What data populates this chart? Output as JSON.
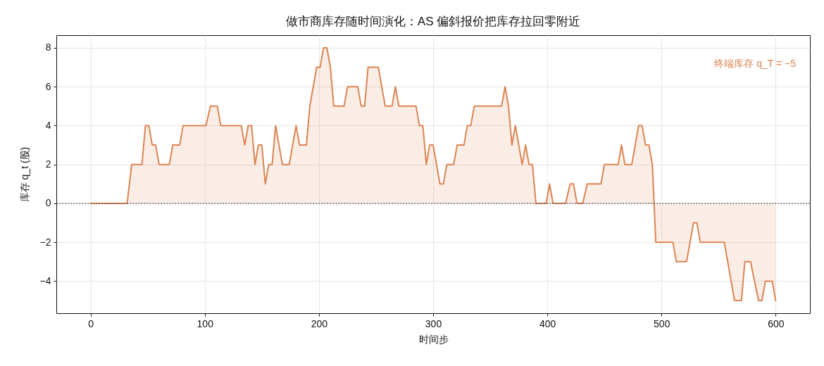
{
  "chart_data": {
    "type": "area",
    "title": "做市商库存随时间演化：AS 偏斜报价把库存拉回零附近",
    "xlabel": "时间步",
    "ylabel": "库存 q_t (股)",
    "x": [
      0,
      32,
      36,
      45,
      48,
      51,
      54,
      57,
      60,
      69,
      72,
      78,
      81,
      101,
      105,
      111,
      114,
      132,
      135,
      138,
      141,
      144,
      147,
      150,
      153,
      156,
      159,
      162,
      168,
      174,
      180,
      183,
      189,
      192,
      195,
      198,
      201,
      204,
      207,
      210,
      213,
      222,
      225,
      234,
      237,
      240,
      243,
      252,
      258,
      264,
      267,
      270,
      285,
      288,
      291,
      294,
      297,
      300,
      306,
      309,
      312,
      318,
      321,
      327,
      330,
      333,
      336,
      360,
      363,
      366,
      369,
      372,
      378,
      381,
      384,
      387,
      390,
      399,
      402,
      405,
      416,
      420,
      423,
      426,
      431,
      435,
      447,
      450,
      462,
      465,
      468,
      474,
      480,
      483,
      486,
      489,
      492,
      495,
      510,
      513,
      522,
      528,
      531,
      534,
      555,
      564,
      570,
      573,
      578,
      585,
      588,
      591,
      597,
      600
    ],
    "series": [
      {
        "color": "#dd8452",
        "values": [
          0,
          0,
          2,
          2,
          4,
          4,
          3,
          3,
          2,
          2,
          3,
          3,
          4,
          4,
          5,
          5,
          4,
          4,
          3,
          4,
          4,
          2,
          3,
          3,
          1,
          2,
          2,
          4,
          2,
          2,
          4,
          3,
          3,
          5,
          6,
          7,
          7,
          8,
          8,
          7,
          5,
          5,
          6,
          6,
          5,
          5,
          7,
          7,
          5,
          5,
          6,
          5,
          5,
          4,
          4,
          2,
          3,
          3,
          1,
          1,
          2,
          2,
          3,
          3,
          4,
          4,
          5,
          5,
          6,
          5,
          3,
          4,
          2,
          3,
          2,
          2,
          0,
          0,
          1,
          0,
          0,
          1,
          1,
          0,
          0,
          1,
          1,
          2,
          2,
          3,
          2,
          2,
          4,
          4,
          3,
          3,
          2,
          -2,
          -2,
          -3,
          -3,
          -1,
          -1,
          -2,
          -2,
          -5,
          -5,
          -3,
          -3,
          -5,
          -5,
          -4,
          -4,
          -5
        ]
      }
    ],
    "xlim": [
      -30,
      630
    ],
    "xticks": [
      0,
      100,
      200,
      300,
      400,
      500,
      600
    ],
    "ylim": [
      -5.65,
      8.65
    ],
    "yticks": [
      -4,
      -2,
      0,
      2,
      4,
      6,
      8
    ],
    "grid": true,
    "ref_lines": [
      {
        "axis": "y",
        "value": 0,
        "color": "#333333",
        "line_style": "dotted"
      }
    ],
    "annotations": [
      "终端库存 q_T = −5"
    ]
  }
}
